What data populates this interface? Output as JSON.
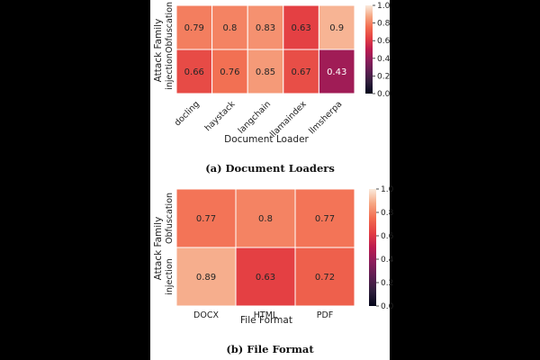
{
  "chart_data": [
    {
      "type": "heatmap",
      "caption": "(a) Document Loaders",
      "xlabel": "Document Loader",
      "ylabel": "Attack Family",
      "x": [
        "docling",
        "haystack",
        "langchain",
        "llamaindex",
        "llmsherpa"
      ],
      "y": [
        "Obfuscation",
        "injection"
      ],
      "values": [
        [
          0.79,
          0.8,
          0.83,
          0.63,
          0.9
        ],
        [
          0.66,
          0.76,
          0.85,
          0.67,
          0.43
        ]
      ],
      "colorbar": {
        "range": [
          0.0,
          1.0
        ],
        "ticks": [
          "0.0",
          "0.2",
          "0.4",
          "0.6",
          "0.8",
          "1.0"
        ]
      },
      "colormap": "rocket"
    },
    {
      "type": "heatmap",
      "caption": "(b) File Format",
      "xlabel": "File Format",
      "ylabel": "Attack Family",
      "x": [
        "DOCX",
        "HTML",
        "PDF"
      ],
      "y": [
        "Obfuscation",
        "injection"
      ],
      "values": [
        [
          0.77,
          0.8,
          0.77
        ],
        [
          0.89,
          0.63,
          0.72
        ]
      ],
      "colorbar": {
        "range": [
          0.0,
          1.0
        ],
        "ticks": [
          "0.0",
          "0.2",
          "0.4",
          "0.6",
          "0.8",
          "1.0"
        ]
      },
      "colormap": "rocket"
    }
  ]
}
